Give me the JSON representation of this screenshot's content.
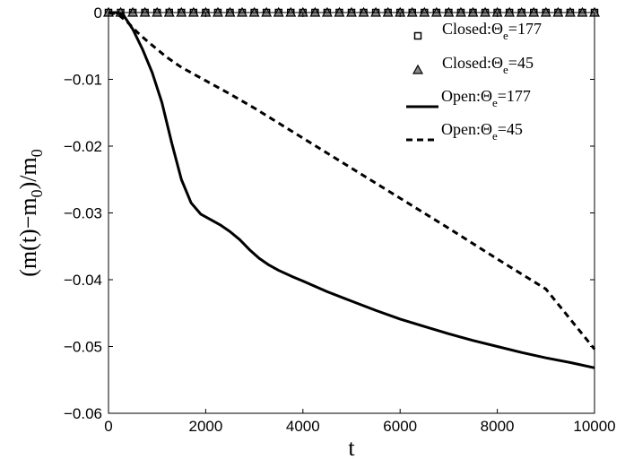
{
  "chart_data": {
    "type": "line",
    "title": "",
    "xlabel": "t",
    "ylabel": "(m(t)−m",
    "ylabel_sub": "0",
    "ylabel_rest": ")/m",
    "ylabel_sub2": "0",
    "xlim": [
      0,
      10000
    ],
    "ylim": [
      -0.06,
      0
    ],
    "xticks": [
      0,
      2000,
      4000,
      6000,
      8000,
      10000
    ],
    "xtick_labels": [
      "0",
      "2000",
      "4000",
      "6000",
      "8000",
      "10000"
    ],
    "yticks": [
      0,
      -0.01,
      -0.02,
      -0.03,
      -0.04,
      -0.05,
      -0.06
    ],
    "ytick_labels": [
      "0",
      "−0.01",
      "−0.02",
      "−0.03",
      "−0.04",
      "−0.05",
      "−0.06"
    ],
    "grid": false,
    "legend_position": "top-right",
    "series": [
      {
        "name": "Closed:Θe=177",
        "legend_main": "Closed:Θ",
        "legend_sub": "e",
        "legend_rest": "=177",
        "style": "square-markers",
        "color": "#000000",
        "x": [
          0,
          250,
          500,
          750,
          1000,
          1250,
          1500,
          1750,
          2000,
          2250,
          2500,
          2750,
          3000,
          3250,
          3500,
          3750,
          4000,
          4250,
          4500,
          4750,
          5000,
          5250,
          5500,
          5750,
          6000,
          6250,
          6500,
          6750,
          7000,
          7250,
          7500,
          7750,
          8000,
          8250,
          8500,
          8750,
          9000,
          9250,
          9500,
          9750,
          10000
        ],
        "y": [
          0,
          0,
          0,
          0,
          0,
          0,
          0,
          0,
          0,
          0,
          0,
          0,
          0,
          0,
          0,
          0,
          0,
          0,
          0,
          0,
          0,
          0,
          0,
          0,
          0,
          0,
          0,
          0,
          0,
          0,
          0,
          0,
          0,
          0,
          0,
          0,
          0,
          0,
          0,
          0,
          0
        ]
      },
      {
        "name": "Closed:Θe=45",
        "legend_main": "Closed:Θ",
        "legend_sub": "e",
        "legend_rest": "=45",
        "style": "triangle-markers",
        "color": "#000000",
        "x": [
          0,
          250,
          500,
          750,
          1000,
          1250,
          1500,
          1750,
          2000,
          2250,
          2500,
          2750,
          3000,
          3250,
          3500,
          3750,
          4000,
          4250,
          4500,
          4750,
          5000,
          5250,
          5500,
          5750,
          6000,
          6250,
          6500,
          6750,
          7000,
          7250,
          7500,
          7750,
          8000,
          8250,
          8500,
          8750,
          9000,
          9250,
          9500,
          9750,
          10000
        ],
        "y": [
          0,
          0,
          0,
          0,
          0,
          0,
          0,
          0,
          0,
          0,
          0,
          0,
          0,
          0,
          0,
          0,
          0,
          0,
          0,
          0,
          0,
          0,
          0,
          0,
          0,
          0,
          0,
          0,
          0,
          0,
          0,
          0,
          0,
          0,
          0,
          0,
          0,
          0,
          0,
          0,
          0
        ]
      },
      {
        "name": "Open:Θe=177",
        "legend_main": "Open:Θ",
        "legend_sub": "e",
        "legend_rest": "=177",
        "style": "solid",
        "color": "#000000",
        "x": [
          0,
          150,
          300,
          500,
          700,
          900,
          1100,
          1300,
          1500,
          1700,
          1900,
          2100,
          2300,
          2500,
          2700,
          2900,
          3100,
          3300,
          3500,
          3800,
          4000,
          4500,
          5000,
          5500,
          6000,
          6500,
          7000,
          7500,
          8000,
          8500,
          9000,
          9500,
          10000
        ],
        "y": [
          0,
          0,
          -0.0003,
          -0.0025,
          -0.0055,
          -0.009,
          -0.0135,
          -0.0195,
          -0.025,
          -0.0285,
          -0.0302,
          -0.031,
          -0.0318,
          -0.0328,
          -0.034,
          -0.0355,
          -0.0368,
          -0.0378,
          -0.0386,
          -0.0396,
          -0.0402,
          -0.0418,
          -0.0432,
          -0.0446,
          -0.0459,
          -0.047,
          -0.0481,
          -0.0491,
          -0.05,
          -0.0509,
          -0.0517,
          -0.0524,
          -0.0532
        ]
      },
      {
        "name": "Open:Θe=45",
        "legend_main": "Open:Θ",
        "legend_sub": "e",
        "legend_rest": "=45",
        "style": "dashed",
        "color": "#000000",
        "x": [
          0,
          200,
          400,
          600,
          800,
          1000,
          1200,
          1500,
          2000,
          2500,
          3000,
          4000,
          5000,
          6000,
          7000,
          8000,
          9000,
          10000
        ],
        "y": [
          0,
          -0.0003,
          -0.0015,
          -0.003,
          -0.0043,
          -0.0055,
          -0.0067,
          -0.0082,
          -0.0102,
          -0.0122,
          -0.0143,
          -0.0188,
          -0.0233,
          -0.0278,
          -0.0323,
          -0.0369,
          -0.0414,
          -0.0504
        ]
      }
    ]
  }
}
